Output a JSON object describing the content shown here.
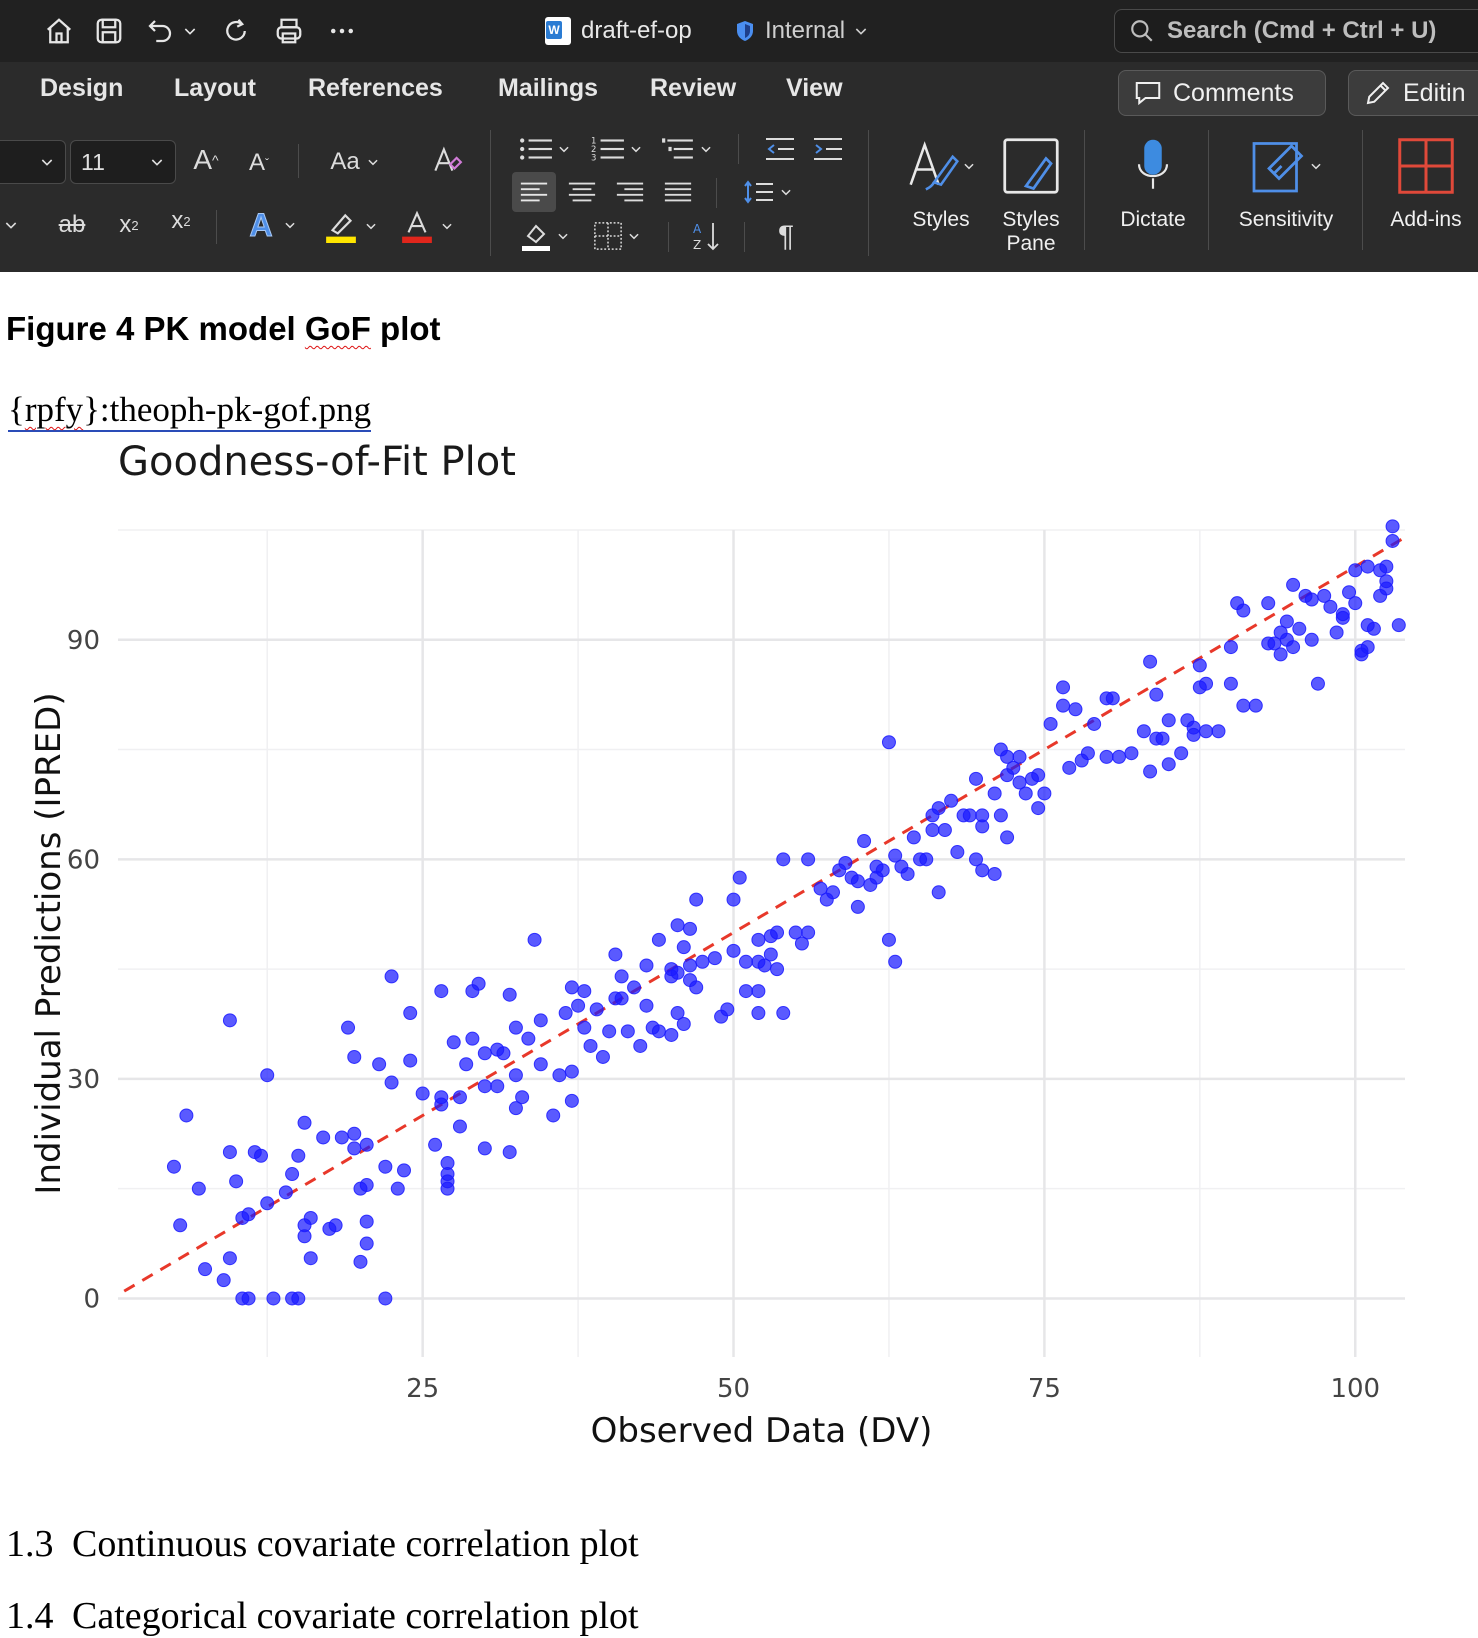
{
  "titlebar": {
    "doc_name": "draft-ef-op",
    "sensitivity": "Internal",
    "search_placeholder": "Search (Cmd + Ctrl + U)"
  },
  "tabs": [
    "Design",
    "Layout",
    "References",
    "Mailings",
    "Review",
    "View"
  ],
  "actions": {
    "comments": "Comments",
    "editing": "Editin"
  },
  "ribbon": {
    "font_size": "11",
    "change_case": "Aa",
    "styles": "Styles",
    "styles_pane_line1": "Styles",
    "styles_pane_line2": "Pane",
    "dictate": "Dictate",
    "sensitivity": "Sensitivity",
    "addins": "Add-ins",
    "paragraph_mark": "¶",
    "highlight_color": "#ffe600",
    "font_color": "#e0261c"
  },
  "document": {
    "caption_prefix": "Figure 4 PK model ",
    "caption_gof": "GoF",
    "caption_suffix": " plot",
    "field_code_a": "{",
    "field_code_b": "rpfy",
    "field_code_c": "}:theoph-pk-gof.png",
    "heading_1_3_num": "1.3",
    "heading_1_3_text": "Continuous covariate correlation plot",
    "heading_1_4_num": "1.4",
    "heading_1_4_text": "Categorical covariate correlation plot"
  },
  "chart_data": {
    "type": "scatter",
    "title": "Goodness-of-Fit Plot",
    "xlabel": "Observed Data (DV)",
    "ylabel": "Individual Predictions (IPRED)",
    "xlim": [
      0.5,
      104
    ],
    "ylim": [
      -8,
      105
    ],
    "xticks": [
      25,
      50,
      75,
      100
    ],
    "yticks": [
      0,
      30,
      60,
      90
    ],
    "grid": true,
    "point_color": "#1a1aff",
    "reference_line": {
      "style": "dashed",
      "color": "#e8382a",
      "from": [
        1,
        1
      ],
      "to": [
        104,
        104
      ]
    },
    "points": [
      [
        5,
        18
      ],
      [
        5.5,
        10
      ],
      [
        6,
        25
      ],
      [
        7,
        15
      ],
      [
        7.5,
        4
      ],
      [
        9,
        2.5
      ],
      [
        9.5,
        20
      ],
      [
        9.5,
        5.5
      ],
      [
        9.5,
        38
      ],
      [
        10,
        16
      ],
      [
        10.5,
        0
      ],
      [
        10.5,
        11
      ],
      [
        11,
        0
      ],
      [
        11,
        11.5
      ],
      [
        11.5,
        20
      ],
      [
        12,
        19.5
      ],
      [
        12.5,
        13
      ],
      [
        12.5,
        30.5
      ],
      [
        13,
        0
      ],
      [
        14,
        14.5
      ],
      [
        14.5,
        17
      ],
      [
        14.5,
        0
      ],
      [
        15,
        0
      ],
      [
        15,
        19.5
      ],
      [
        15.5,
        10
      ],
      [
        15.5,
        24
      ],
      [
        15.5,
        8.5
      ],
      [
        16,
        11
      ],
      [
        16,
        5.5
      ],
      [
        17,
        22
      ],
      [
        17.5,
        9.5
      ],
      [
        18,
        10
      ],
      [
        18.5,
        22
      ],
      [
        19,
        37
      ],
      [
        19.5,
        20.5
      ],
      [
        19.5,
        22.5
      ],
      [
        19.5,
        33
      ],
      [
        20,
        15
      ],
      [
        20,
        5
      ],
      [
        20.5,
        7.5
      ],
      [
        20.5,
        10.5
      ],
      [
        20.5,
        21
      ],
      [
        20.5,
        15.5
      ],
      [
        21.5,
        32
      ],
      [
        22,
        18
      ],
      [
        22,
        0
      ],
      [
        22.5,
        29.5
      ],
      [
        22.5,
        44
      ],
      [
        23,
        15
      ],
      [
        23.5,
        17.5
      ],
      [
        24,
        32.5
      ],
      [
        24,
        39
      ],
      [
        25,
        28
      ],
      [
        26,
        21
      ],
      [
        26.5,
        26.5
      ],
      [
        26.5,
        27.5
      ],
      [
        26.5,
        42
      ],
      [
        27,
        15
      ],
      [
        27,
        16
      ],
      [
        27,
        17
      ],
      [
        27,
        18.5
      ],
      [
        27.5,
        35
      ],
      [
        28,
        27.5
      ],
      [
        28,
        23.5
      ],
      [
        28.5,
        32
      ],
      [
        29,
        35.5
      ],
      [
        29,
        42
      ],
      [
        29.5,
        43
      ],
      [
        30,
        29
      ],
      [
        30,
        20.5
      ],
      [
        30,
        33.5
      ],
      [
        31,
        34
      ],
      [
        31,
        29
      ],
      [
        31.5,
        33.5
      ],
      [
        32,
        20
      ],
      [
        32,
        41.5
      ],
      [
        32.5,
        26
      ],
      [
        32.5,
        30.5
      ],
      [
        32.5,
        37
      ],
      [
        33,
        27.5
      ],
      [
        33.5,
        35.5
      ],
      [
        34,
        49
      ],
      [
        34.5,
        32
      ],
      [
        34.5,
        38
      ],
      [
        35.5,
        25
      ],
      [
        36,
        30.5
      ],
      [
        36.5,
        39
      ],
      [
        37,
        27
      ],
      [
        37,
        42.5
      ],
      [
        37,
        31
      ],
      [
        37.5,
        40
      ],
      [
        38,
        42
      ],
      [
        38,
        37
      ],
      [
        38.5,
        34.5
      ],
      [
        39,
        39.5
      ],
      [
        39.5,
        33
      ],
      [
        40,
        36.5
      ],
      [
        40.5,
        47
      ],
      [
        40.5,
        41
      ],
      [
        41,
        44
      ],
      [
        41,
        41
      ],
      [
        41.5,
        36.5
      ],
      [
        42,
        42.5
      ],
      [
        42.5,
        34.5
      ],
      [
        43,
        45.5
      ],
      [
        43,
        40
      ],
      [
        43.5,
        37
      ],
      [
        44,
        49
      ],
      [
        44,
        36.5
      ],
      [
        45,
        45
      ],
      [
        45,
        44
      ],
      [
        45,
        36
      ],
      [
        45.5,
        51
      ],
      [
        45.5,
        39
      ],
      [
        45.5,
        44.5
      ],
      [
        46,
        48
      ],
      [
        46,
        37.5
      ],
      [
        46.5,
        43.5
      ],
      [
        46.5,
        50.5
      ],
      [
        47,
        54.5
      ],
      [
        46.5,
        45.5
      ],
      [
        47,
        42.5
      ],
      [
        47.5,
        46
      ],
      [
        48.5,
        46.5
      ],
      [
        49,
        38.5
      ],
      [
        49.5,
        39.5
      ],
      [
        50,
        47.5
      ],
      [
        50,
        54.5
      ],
      [
        50.5,
        57.5
      ],
      [
        51,
        42
      ],
      [
        51,
        46
      ],
      [
        52,
        49
      ],
      [
        52,
        46
      ],
      [
        52,
        42
      ],
      [
        52,
        39
      ],
      [
        52.5,
        45.5
      ],
      [
        53,
        47
      ],
      [
        53,
        49.5
      ],
      [
        53.5,
        45
      ],
      [
        53.5,
        50
      ],
      [
        54,
        39
      ],
      [
        54,
        60
      ],
      [
        55,
        50
      ],
      [
        55.5,
        48.5
      ],
      [
        56,
        50
      ],
      [
        56,
        60
      ],
      [
        57,
        56
      ],
      [
        57.5,
        54.5
      ],
      [
        58,
        55.5
      ],
      [
        58.5,
        58.5
      ],
      [
        59,
        59.5
      ],
      [
        59.5,
        57.5
      ],
      [
        60,
        57
      ],
      [
        60,
        53.5
      ],
      [
        60.5,
        62.5
      ],
      [
        61,
        56.5
      ],
      [
        61.5,
        57.5
      ],
      [
        61.5,
        59
      ],
      [
        62,
        58.5
      ],
      [
        62.5,
        49
      ],
      [
        62.5,
        76
      ],
      [
        63,
        46
      ],
      [
        63,
        60.5
      ],
      [
        63.5,
        59
      ],
      [
        64,
        58
      ],
      [
        64.5,
        63
      ],
      [
        65,
        60
      ],
      [
        65.5,
        60
      ],
      [
        66,
        66
      ],
      [
        66,
        64
      ],
      [
        66.5,
        55.5
      ],
      [
        66.5,
        67
      ],
      [
        67,
        64
      ],
      [
        67.5,
        68
      ],
      [
        68,
        61
      ],
      [
        68.5,
        66
      ],
      [
        69,
        66
      ],
      [
        69.5,
        60
      ],
      [
        69.5,
        71
      ],
      [
        70,
        58.5
      ],
      [
        70,
        64.5
      ],
      [
        70,
        66
      ],
      [
        71,
        58
      ],
      [
        71,
        69
      ],
      [
        71.5,
        66
      ],
      [
        71.5,
        75
      ],
      [
        72,
        63
      ],
      [
        72,
        71.5
      ],
      [
        72,
        74
      ],
      [
        72.5,
        72.5
      ],
      [
        73,
        70.5
      ],
      [
        73,
        74
      ],
      [
        73.5,
        69
      ],
      [
        74,
        71
      ],
      [
        74.5,
        71.5
      ],
      [
        74.5,
        67
      ],
      [
        75,
        69
      ],
      [
        75.5,
        78.5
      ],
      [
        76.5,
        83.5
      ],
      [
        76.5,
        81
      ],
      [
        77,
        72.5
      ],
      [
        77.5,
        80.5
      ],
      [
        78,
        73.5
      ],
      [
        78.5,
        74.5
      ],
      [
        79,
        78.5
      ],
      [
        80,
        74
      ],
      [
        80,
        82
      ],
      [
        80.5,
        82
      ],
      [
        81,
        74
      ],
      [
        82,
        74.5
      ],
      [
        83,
        77.5
      ],
      [
        83.5,
        72
      ],
      [
        83.5,
        87
      ],
      [
        84,
        76.5
      ],
      [
        84,
        82.5
      ],
      [
        84.5,
        76.5
      ],
      [
        85,
        73
      ],
      [
        85,
        79
      ],
      [
        86,
        74.5
      ],
      [
        86.5,
        79
      ],
      [
        87,
        77
      ],
      [
        87,
        78
      ],
      [
        87.5,
        83.5
      ],
      [
        87.5,
        86.5
      ],
      [
        88,
        77.5
      ],
      [
        88,
        84
      ],
      [
        89,
        77.5
      ],
      [
        90,
        89
      ],
      [
        90,
        84
      ],
      [
        90.5,
        95
      ],
      [
        91,
        94
      ],
      [
        91,
        81
      ],
      [
        92,
        81
      ],
      [
        93,
        89.5
      ],
      [
        93,
        95
      ],
      [
        93.5,
        89.5
      ],
      [
        94,
        88
      ],
      [
        94,
        91
      ],
      [
        94.5,
        92.5
      ],
      [
        94.5,
        90
      ],
      [
        95,
        89
      ],
      [
        95,
        97.5
      ],
      [
        95.5,
        91.5
      ],
      [
        96,
        96
      ],
      [
        96.5,
        95.5
      ],
      [
        96.5,
        90
      ],
      [
        97,
        84
      ],
      [
        97.5,
        96
      ],
      [
        98,
        94.5
      ],
      [
        98.5,
        91
      ],
      [
        99,
        93
      ],
      [
        99,
        93.5
      ],
      [
        99.5,
        96.5
      ],
      [
        100,
        99.5
      ],
      [
        100,
        95
      ],
      [
        100.5,
        88
      ],
      [
        100.5,
        88.5
      ],
      [
        101,
        89
      ],
      [
        101,
        92
      ],
      [
        101,
        100
      ],
      [
        101.5,
        91.5
      ],
      [
        102,
        96
      ],
      [
        102,
        99.5
      ],
      [
        102.5,
        97
      ],
      [
        102.5,
        98
      ],
      [
        102.5,
        100
      ],
      [
        103,
        103.5
      ],
      [
        103,
        105.5
      ],
      [
        103.5,
        92
      ]
    ]
  }
}
